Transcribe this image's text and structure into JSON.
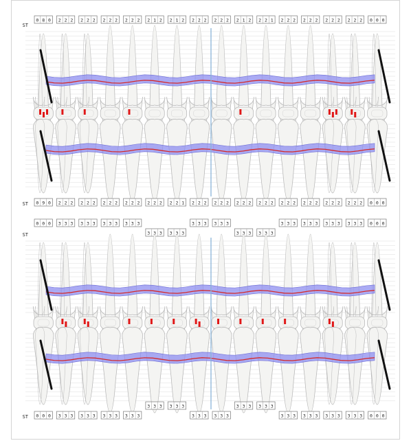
{
  "st_label": "ST",
  "colors": {
    "gum_band": "#8f8ff0",
    "gum_band_stroke": "#6b6bd6",
    "bone_line": "#d42a2a",
    "midline": "#8ab4d8",
    "tooth_fill": "#f4f4f2",
    "tooth_stroke": "#b9b9b9",
    "bleeding_dot": "#e01818",
    "implant_bar": "#111111",
    "ruler_line": "#dedede"
  },
  "icon_names": [
    "tooth-crown-icon",
    "tooth-root-icon",
    "occlusal-surface-icon",
    "bleeding-point-icon",
    "implant-bar-icon"
  ],
  "chart": {
    "upper_jaw": {
      "probing_rows": [
        [
          "080",
          "222",
          "222",
          "222",
          "222",
          "212",
          "212",
          "222",
          "222",
          "212",
          "221",
          "222",
          "222",
          "222",
          "222",
          "000"
        ],
        [
          "090",
          "222",
          "222",
          "222",
          "222",
          "222",
          "221",
          "222",
          "222",
          "222",
          "222",
          "222",
          "222",
          "222",
          "222",
          "000"
        ]
      ],
      "bleeding_points": [
        3,
        1,
        1,
        0,
        1,
        0,
        0,
        0,
        0,
        1,
        0,
        0,
        0,
        3,
        2,
        0
      ]
    },
    "lower_jaw": {
      "probing_rows": [
        [
          "000",
          "333",
          "333",
          "333",
          "333",
          "333",
          "333",
          "333",
          "333",
          "333",
          "333",
          "333",
          "333",
          "333",
          "333",
          "000"
        ],
        [
          "000",
          "333",
          "333",
          "333",
          "333",
          "333",
          "333",
          "333",
          "333",
          "333",
          "333",
          "333",
          "333",
          "333",
          "333",
          "000"
        ]
      ],
      "bleeding_points": [
        0,
        2,
        2,
        0,
        1,
        1,
        1,
        2,
        1,
        1,
        1,
        1,
        0,
        2,
        0,
        0
      ]
    }
  }
}
